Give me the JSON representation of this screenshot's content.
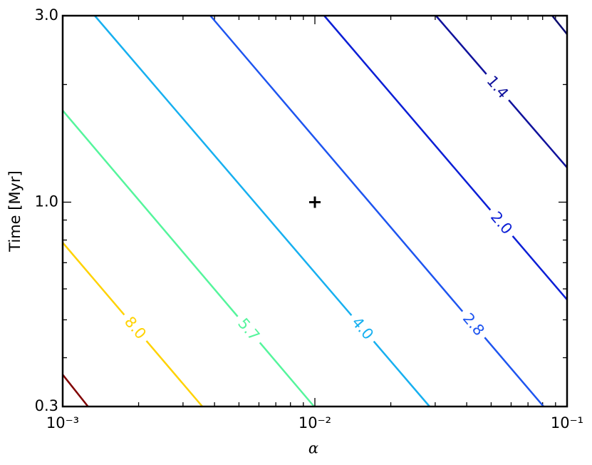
{
  "chart_data": {
    "type": "contour",
    "xlabel": "α",
    "ylabel": "Time [Myr]",
    "xscale": "log",
    "yscale": "log",
    "xlim": [
      0.001,
      0.1
    ],
    "ylim": [
      0.3,
      3.0
    ],
    "xticks": [
      {
        "value": 0.001,
        "label": "10⁻³"
      },
      {
        "value": 0.01,
        "label": "10⁻²"
      },
      {
        "value": 0.1,
        "label": "10⁻¹"
      }
    ],
    "yticks": [
      0.3,
      {
        "value": 1.0,
        "label": "1.0"
      },
      {
        "value": 3.0,
        "label": "3.0"
      }
    ],
    "xminor_ticks": [
      0.002,
      0.003,
      0.004,
      0.005,
      0.006,
      0.007,
      0.008,
      0.009,
      0.02,
      0.03,
      0.04,
      0.05,
      0.06,
      0.07,
      0.08,
      0.09
    ],
    "yminor_ticks": [
      0.4,
      0.5,
      0.6,
      0.7,
      0.8,
      0.9,
      2.0
    ],
    "series": [
      {
        "label": null,
        "color": "#0a0a6e",
        "x": [
          0.0873,
          0.1
        ],
        "y": [
          3.0,
          2.69
        ]
      },
      {
        "label": "1.4",
        "color": "#10129c",
        "x": [
          0.0302,
          0.1
        ],
        "y": [
          3.0,
          1.226
        ]
      },
      {
        "label": "2.0",
        "color": "#0c1fd6",
        "x": [
          0.01089,
          0.1
        ],
        "y": [
          3.0,
          0.563
        ]
      },
      {
        "label": "2.8",
        "color": "#1e55f0",
        "x": [
          0.00385,
          0.0807
        ],
        "y": [
          3.0,
          0.3
        ]
      },
      {
        "label": "4.0",
        "color": "#17b0f0",
        "x": [
          0.00134,
          0.0285
        ],
        "y": [
          3.0,
          0.3
        ]
      },
      {
        "label": "5.7",
        "color": "#55f59c",
        "x": [
          0.001,
          0.00993
        ],
        "y": [
          1.716,
          0.3
        ]
      },
      {
        "label": "8.0",
        "color": "#ffd200",
        "x": [
          0.001,
          0.00358
        ],
        "y": [
          0.788,
          0.3
        ]
      },
      {
        "label": null,
        "color": "#800000",
        "x": [
          0.001,
          0.00126
        ],
        "y": [
          0.362,
          0.3
        ]
      }
    ],
    "marker": {
      "x": 0.01,
      "y": 1.0,
      "color": "#000000"
    }
  }
}
